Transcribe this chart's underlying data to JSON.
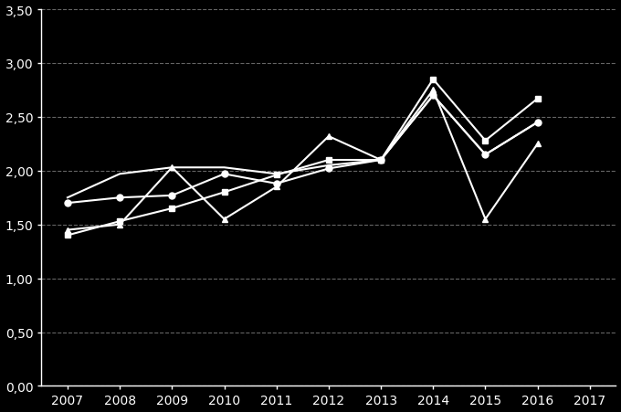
{
  "years": [
    2007,
    2008,
    2009,
    2010,
    2011,
    2012,
    2013,
    2014,
    2015,
    2016,
    2017
  ],
  "series": [
    {
      "marker": "o",
      "values": [
        1.7,
        1.75,
        1.77,
        1.97,
        1.88,
        2.02,
        2.1,
        2.7,
        2.15,
        2.45,
        null
      ]
    },
    {
      "marker": "s",
      "values": [
        1.4,
        1.53,
        1.65,
        1.8,
        1.96,
        2.1,
        2.1,
        2.85,
        2.28,
        2.67,
        null
      ]
    },
    {
      "marker": "^",
      "values": [
        1.45,
        1.5,
        2.03,
        1.55,
        1.85,
        2.32,
        2.1,
        2.75,
        1.55,
        2.25,
        null
      ]
    },
    {
      "marker": "None",
      "values": [
        1.75,
        1.97,
        2.03,
        2.03,
        1.97,
        2.05,
        2.1,
        2.7,
        2.15,
        2.45,
        null
      ]
    }
  ],
  "background_color": "#000000",
  "line_color": "#ffffff",
  "grid_color": "#ffffff",
  "grid_alpha": 0.4,
  "ylim": [
    0.0,
    3.5
  ],
  "yticks": [
    0.0,
    0.5,
    1.0,
    1.5,
    2.0,
    2.5,
    3.0,
    3.5
  ],
  "ytick_labels": [
    "0,00",
    "0,50",
    "1,00",
    "1,50",
    "2,00",
    "2,50",
    "3,00",
    "3,50"
  ],
  "xlim": [
    2006.5,
    2017.5
  ],
  "xticks": [
    2007,
    2008,
    2009,
    2010,
    2011,
    2012,
    2013,
    2014,
    2015,
    2016,
    2017
  ],
  "linewidth": 1.5,
  "markersize": 5,
  "font_size": 10
}
